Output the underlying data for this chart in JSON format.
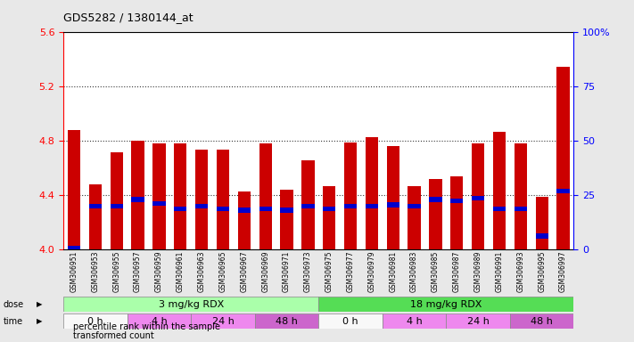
{
  "title": "GDS5282 / 1380144_at",
  "samples": [
    "GSM306951",
    "GSM306953",
    "GSM306955",
    "GSM306957",
    "GSM306959",
    "GSM306961",
    "GSM306963",
    "GSM306965",
    "GSM306967",
    "GSM306969",
    "GSM306971",
    "GSM306973",
    "GSM306975",
    "GSM306977",
    "GSM306979",
    "GSM306981",
    "GSM306983",
    "GSM306985",
    "GSM306987",
    "GSM306989",
    "GSM306991",
    "GSM306993",
    "GSM306995",
    "GSM306997"
  ],
  "bar_values": [
    4.88,
    4.48,
    4.72,
    4.8,
    4.78,
    4.78,
    4.74,
    4.74,
    4.43,
    4.78,
    4.44,
    4.66,
    4.47,
    4.79,
    4.83,
    4.76,
    4.47,
    4.52,
    4.54,
    4.78,
    4.87,
    4.78,
    4.39,
    5.35
  ],
  "percentile_values": [
    4.01,
    4.32,
    4.32,
    4.37,
    4.34,
    4.3,
    4.32,
    4.3,
    4.29,
    4.3,
    4.29,
    4.32,
    4.3,
    4.32,
    4.32,
    4.33,
    4.32,
    4.37,
    4.36,
    4.38,
    4.3,
    4.3,
    4.1,
    4.43
  ],
  "ymin": 4.0,
  "ymax": 5.6,
  "yticks_left": [
    4.0,
    4.4,
    4.8,
    5.2,
    5.6
  ],
  "yticks_right_vals": [
    0,
    25,
    50,
    75,
    100
  ],
  "yticks_right_labels": [
    "0",
    "25",
    "50",
    "75",
    "100%"
  ],
  "bar_color": "#cc0000",
  "percentile_color": "#0000cc",
  "fig_bg": "#e8e8e8",
  "plot_bg": "#ffffff",
  "xtick_bg": "#d8d8d8",
  "dose_data": [
    {
      "label": "3 mg/kg RDX",
      "start": 0,
      "end": 12,
      "color": "#aaffaa"
    },
    {
      "label": "18 mg/kg RDX",
      "start": 12,
      "end": 24,
      "color": "#55dd55"
    }
  ],
  "time_data": [
    {
      "label": "0 h",
      "start": 0,
      "end": 3,
      "color": "#f8f8f8"
    },
    {
      "label": "4 h",
      "start": 3,
      "end": 6,
      "color": "#ee88ee"
    },
    {
      "label": "24 h",
      "start": 6,
      "end": 9,
      "color": "#ee88ee"
    },
    {
      "label": "48 h",
      "start": 9,
      "end": 12,
      "color": "#cc66cc"
    },
    {
      "label": "0 h",
      "start": 12,
      "end": 15,
      "color": "#f8f8f8"
    },
    {
      "label": "4 h",
      "start": 15,
      "end": 18,
      "color": "#ee88ee"
    },
    {
      "label": "24 h",
      "start": 18,
      "end": 21,
      "color": "#ee88ee"
    },
    {
      "label": "48 h",
      "start": 21,
      "end": 24,
      "color": "#cc66cc"
    }
  ],
  "legend_items": [
    {
      "label": "transformed count",
      "color": "#cc0000"
    },
    {
      "label": "percentile rank within the sample",
      "color": "#0000cc"
    }
  ],
  "grid_lines": [
    4.4,
    4.8,
    5.2
  ],
  "bar_width": 0.6,
  "pct_bar_height": 0.035
}
